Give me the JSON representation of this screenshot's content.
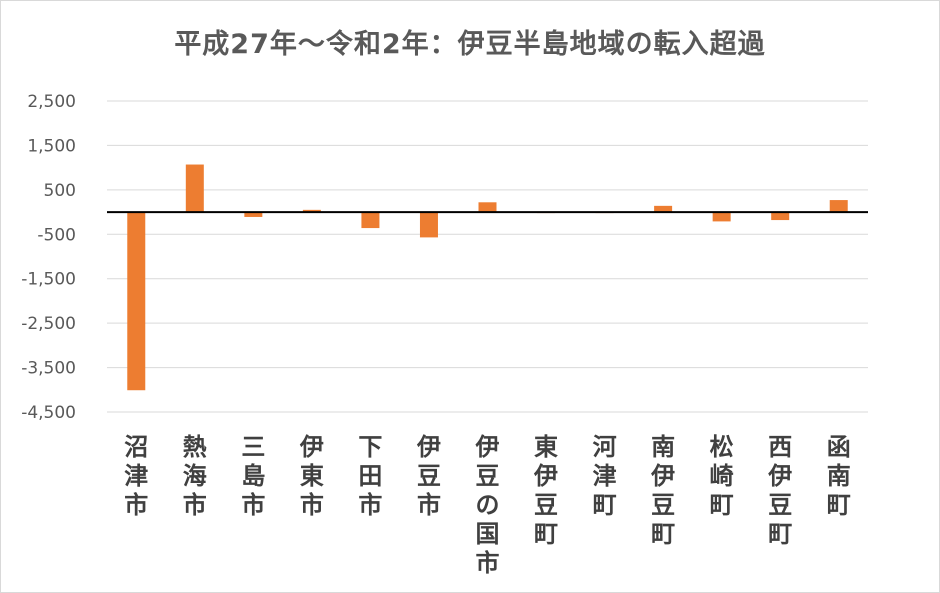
{
  "chart_data": {
    "type": "bar",
    "title": "平成27年～令和2年：伊豆半島地域の転入超過",
    "categories": [
      "沼津市",
      "熱海市",
      "三島市",
      "伊東市",
      "下田市",
      "伊豆市",
      "伊豆の国市",
      "東伊豆町",
      "河津町",
      "南伊豆町",
      "松崎町",
      "西伊豆町",
      "函南町"
    ],
    "values": [
      -4010,
      1070,
      -110,
      50,
      -360,
      -570,
      220,
      -20,
      -10,
      140,
      -210,
      -180,
      270
    ],
    "ylim": [
      -4500,
      2500
    ],
    "yticks": [
      "2,500",
      "1,500",
      "500",
      "-500",
      "-1,500",
      "-2,500",
      "-3,500",
      "-4,500"
    ],
    "ytick_values": [
      2500,
      1500,
      500,
      -500,
      -1500,
      -2500,
      -3500,
      -4500
    ],
    "grid": true,
    "legend": "none",
    "bar_color": "#ed7d31",
    "grid_color": "#d9d9d9"
  }
}
